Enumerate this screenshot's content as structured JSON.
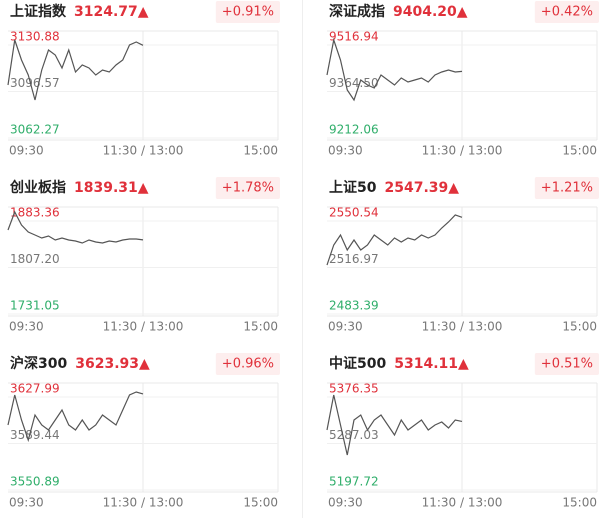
{
  "chart_data": [
    {
      "type": "line",
      "title": "上证指数",
      "price": "3124.77▲",
      "change": "+0.91%",
      "color": "#555555",
      "x": [
        0,
        6,
        12,
        18,
        24,
        30,
        36,
        42,
        48,
        54,
        60,
        66,
        72,
        78,
        84,
        90,
        96,
        102,
        108,
        114,
        120
      ],
      "xlim": [
        0,
        240
      ],
      "xticks": [
        {
          "value": 0,
          "label": "09:30"
        },
        {
          "value": 120,
          "label": "11:30 / 13:00"
        },
        {
          "value": 240,
          "label": "15:00"
        }
      ],
      "ylim": [
        3062.27,
        3130.88
      ],
      "yticks": [
        3130.88,
        3096.57,
        3062.27
      ],
      "values": [
        3095.47,
        3128.67,
        3113.91,
        3102.85,
        3084.4,
        3106.54,
        3121.29,
        3117.6,
        3108.01,
        3121.29,
        3105.06,
        3110.22,
        3108.01,
        3102.85,
        3106.54,
        3105.06,
        3110.22,
        3113.91,
        3124.98,
        3127.19,
        3124.77
      ]
    },
    {
      "type": "line",
      "title": "深证成指",
      "price": "9404.20▲",
      "change": "+0.42%",
      "color": "#555555",
      "x": [
        0,
        6,
        12,
        18,
        24,
        30,
        36,
        42,
        48,
        54,
        60,
        66,
        72,
        78,
        84,
        90,
        96,
        102,
        108,
        114,
        120
      ],
      "xlim": [
        0,
        240
      ],
      "xticks": [
        {
          "value": 0,
          "label": "09:30"
        },
        {
          "value": 120,
          "label": "11:30 / 13:00"
        },
        {
          "value": 240,
          "label": "15:00"
        }
      ],
      "ylim": [
        9212.06,
        9516.94
      ],
      "yticks": [
        9516.94,
        {
          "value": 9364.5,
          "label": "9364.50"
        },
        9212.06
      ],
      "values": [
        9392.38,
        9507.11,
        9441.55,
        9343.21,
        9310.43,
        9375.99,
        9359.6,
        9349.76,
        9392.38,
        9375.99,
        9359.6,
        9382.54,
        9369.43,
        9375.99,
        9382.54,
        9369.43,
        9392.38,
        9402.21,
        9408.77,
        9402.21,
        9404.2
      ]
    },
    {
      "type": "line",
      "title": "创业板指",
      "price": "1839.31▲",
      "change": "+1.78%",
      "color": "#555555",
      "x": [
        0,
        6,
        12,
        18,
        24,
        30,
        36,
        42,
        48,
        54,
        60,
        66,
        72,
        78,
        84,
        90,
        96,
        102,
        108,
        114,
        120
      ],
      "xlim": [
        0,
        240
      ],
      "xticks": [
        {
          "value": 0,
          "label": "09:30"
        },
        {
          "value": 120,
          "label": "11:30 / 13:00"
        },
        {
          "value": 240,
          "label": "15:00"
        }
      ],
      "ylim": [
        1731.05,
        1883.36
      ],
      "yticks": [
        1883.36,
        {
          "value": 1807.2,
          "label": "1807.20"
        },
        1731.05
      ],
      "values": [
        1855.52,
        1885.0,
        1863.71,
        1852.24,
        1847.33,
        1842.42,
        1845.69,
        1839.14,
        1842.42,
        1839.14,
        1837.5,
        1834.23,
        1839.14,
        1835.87,
        1834.23,
        1837.5,
        1835.87,
        1839.14,
        1840.78,
        1840.78,
        1839.31
      ]
    },
    {
      "type": "line",
      "title": "上证50",
      "price": "2547.39▲",
      "change": "+1.21%",
      "color": "#555555",
      "x": [
        0,
        6,
        12,
        18,
        24,
        30,
        36,
        42,
        48,
        54,
        60,
        66,
        72,
        78,
        84,
        90,
        96,
        102,
        108,
        114,
        120
      ],
      "xlim": [
        0,
        240
      ],
      "xticks": [
        {
          "value": 0,
          "label": "09:30"
        },
        {
          "value": 120,
          "label": "11:30 / 13:00"
        },
        {
          "value": 240,
          "label": "15:00"
        }
      ],
      "ylim": [
        2483.39,
        2550.54
      ],
      "yticks": [
        2550.54,
        2516.97,
        2483.39
      ],
      "values": [
        2512.99,
        2527.44,
        2534.66,
        2523.83,
        2531.05,
        2523.83,
        2527.44,
        2534.66,
        2531.05,
        2527.44,
        2532.49,
        2529.6,
        2532.49,
        2531.05,
        2534.66,
        2532.49,
        2534.66,
        2539.71,
        2544.04,
        2549.1,
        2547.39
      ]
    },
    {
      "type": "line",
      "title": "沪深300",
      "price": "3623.93▲",
      "change": "+0.96%",
      "color": "#555555",
      "x": [
        0,
        6,
        12,
        18,
        24,
        30,
        36,
        42,
        48,
        54,
        60,
        66,
        72,
        78,
        84,
        90,
        96,
        102,
        108,
        114,
        120
      ],
      "xlim": [
        0,
        240
      ],
      "xticks": [
        {
          "value": 0,
          "label": "09:30"
        },
        {
          "value": 120,
          "label": "11:30 / 13:00"
        },
        {
          "value": 240,
          "label": "15:00"
        }
      ],
      "ylim": [
        3550.89,
        3627.99
      ],
      "yticks": [
        3627.99,
        3589.44,
        3550.89
      ],
      "values": [
        3598.15,
        3623.02,
        3602.29,
        3585.71,
        3606.44,
        3598.15,
        3594.0,
        3602.29,
        3610.58,
        3598.15,
        3594.0,
        3602.29,
        3594.0,
        3598.15,
        3606.44,
        3602.29,
        3598.15,
        3610.58,
        3623.02,
        3625.5,
        3623.93
      ]
    },
    {
      "type": "line",
      "title": "中证500",
      "price": "5314.11▲",
      "change": "+0.51%",
      "color": "#555555",
      "x": [
        0,
        6,
        12,
        18,
        24,
        30,
        36,
        42,
        48,
        54,
        60,
        66,
        72,
        78,
        84,
        90,
        96,
        102,
        108,
        114,
        120
      ],
      "xlim": [
        0,
        240
      ],
      "xticks": [
        {
          "value": 0,
          "label": "09:30"
        },
        {
          "value": 120,
          "label": "11:30 / 13:00"
        },
        {
          "value": 240,
          "label": "15:00"
        }
      ],
      "ylim": [
        5197.72,
        5376.35
      ],
      "yticks": [
        5376.35,
        5287.03,
        5197.72
      ],
      "values": [
        5297.6,
        5364.83,
        5307.2,
        5249.58,
        5316.81,
        5326.41,
        5297.6,
        5316.81,
        5326.41,
        5307.2,
        5288.0,
        5316.81,
        5297.6,
        5307.2,
        5316.81,
        5297.6,
        5307.2,
        5312.96,
        5301.44,
        5316.81,
        5314.11
      ]
    }
  ]
}
